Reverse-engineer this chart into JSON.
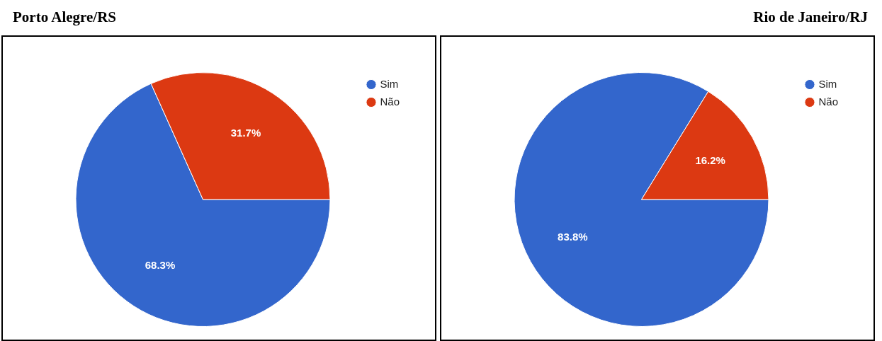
{
  "chart_data": [
    {
      "type": "pie",
      "title": "Porto Alegre/RS",
      "categories": [
        "Sim",
        "Não"
      ],
      "values": [
        68.3,
        31.7
      ],
      "colors": [
        "#3366cc",
        "#dc3912"
      ],
      "value_labels": [
        "68.3%",
        "31.7%"
      ],
      "legend": "top right"
    },
    {
      "type": "pie",
      "title": "Rio de Janeiro/RJ",
      "categories": [
        "Sim",
        "Não"
      ],
      "values": [
        83.8,
        16.2
      ],
      "colors": [
        "#3366cc",
        "#dc3912"
      ],
      "value_labels": [
        "83.8%",
        "16.2%"
      ],
      "legend": "top right"
    }
  ]
}
